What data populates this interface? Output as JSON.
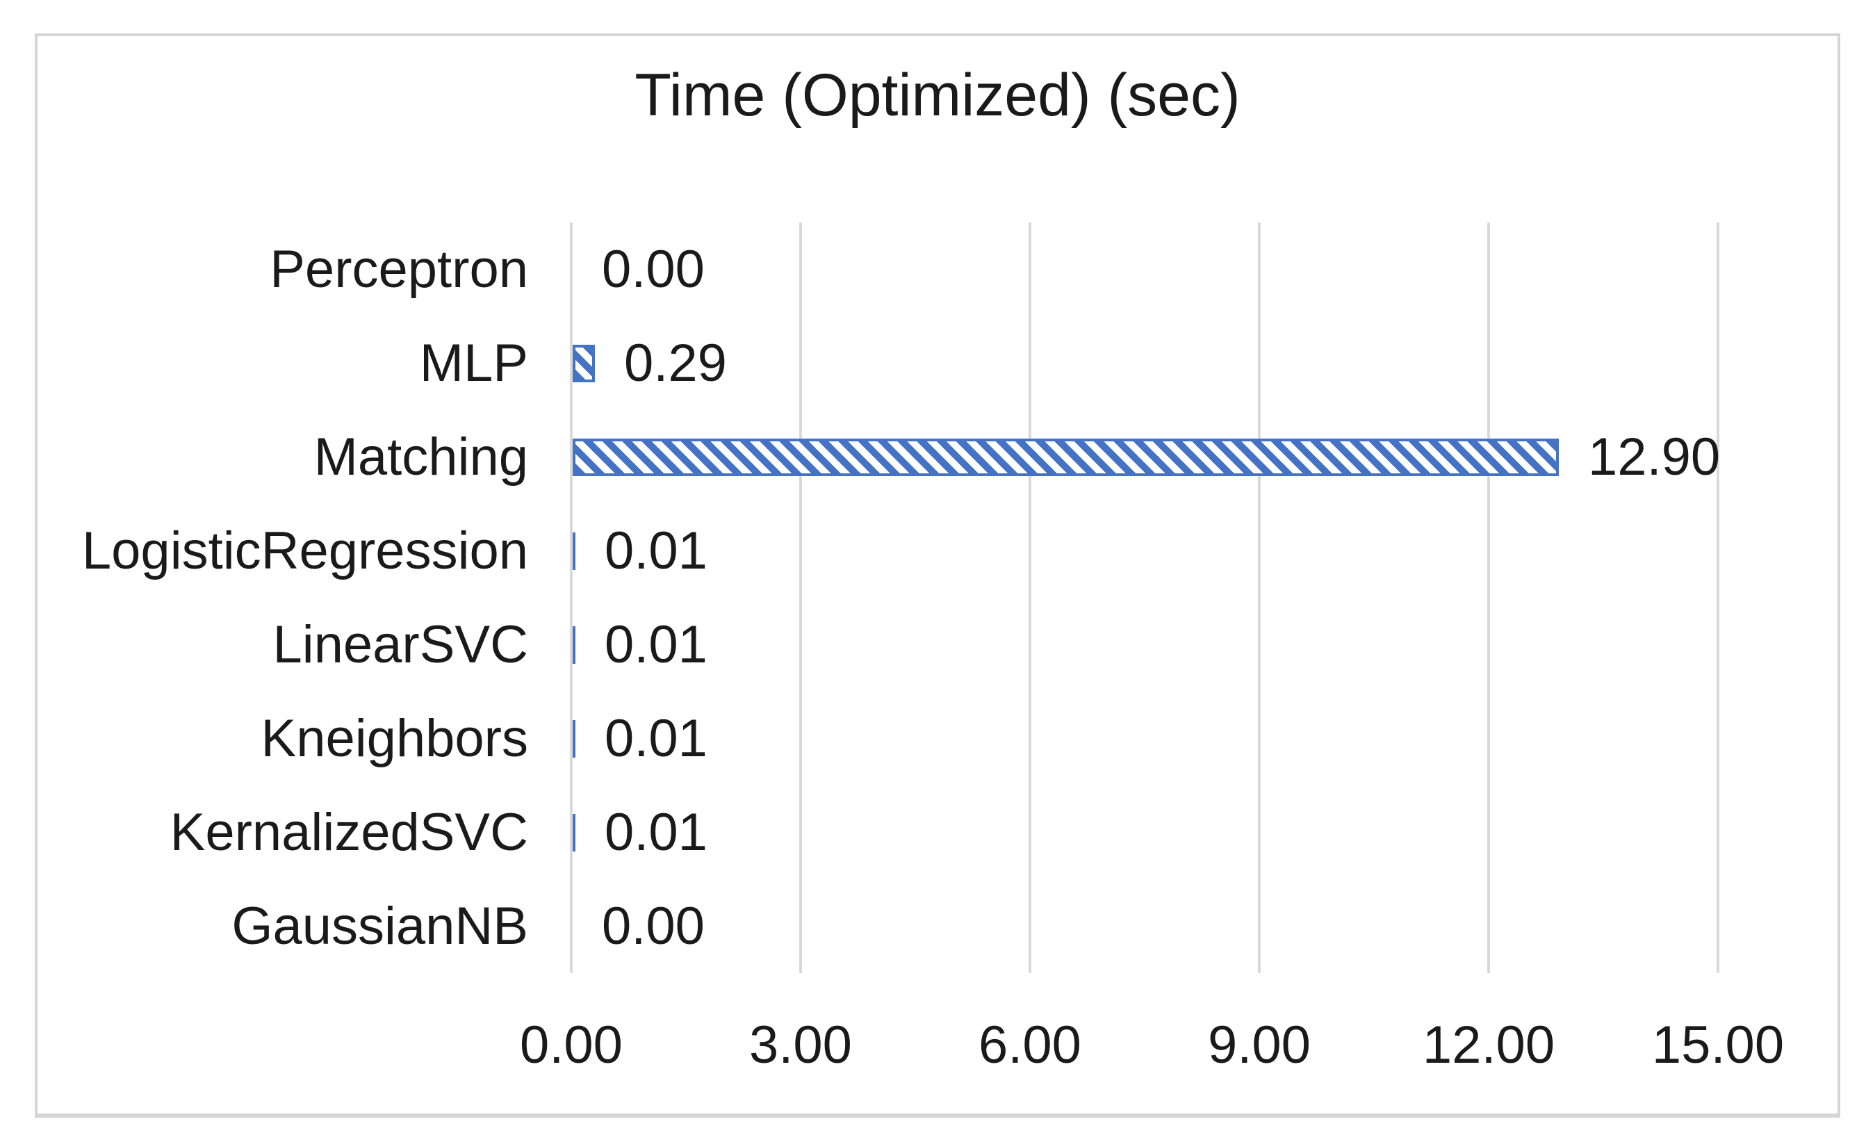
{
  "chart": {
    "bar_color": "#4472C4",
    "gridline_color": "#D9D9D9",
    "frame_border_color": "#D5D5D5",
    "text_color": "#1A1A1A",
    "background_color": "#FFFFFF",
    "bar_fill_style": "diagonal-hatch"
  },
  "chart_data": {
    "type": "bar",
    "orientation": "horizontal",
    "title": "Time (Optimized) (sec)",
    "xlabel": "",
    "ylabel": "",
    "categories": [
      "Perceptron",
      "MLP",
      "Matching",
      "LogisticRegression",
      "LinearSVC",
      "Kneighbors",
      "KernalizedSVC",
      "GaussianNB"
    ],
    "values": [
      0.0,
      0.29,
      12.9,
      0.01,
      0.01,
      0.01,
      0.01,
      0.0
    ],
    "data_labels": [
      "0.00",
      "0.29",
      "12.90",
      "0.01",
      "0.01",
      "0.01",
      "0.01",
      "0.00"
    ],
    "xlim": [
      0,
      15
    ],
    "x_tick_values": [
      0,
      3,
      6,
      9,
      12,
      15
    ],
    "x_tick_labels": [
      "0.00",
      "3.00",
      "6.00",
      "9.00",
      "12.00",
      "15.00"
    ],
    "grid": true,
    "legend": false,
    "series_count": 1
  }
}
